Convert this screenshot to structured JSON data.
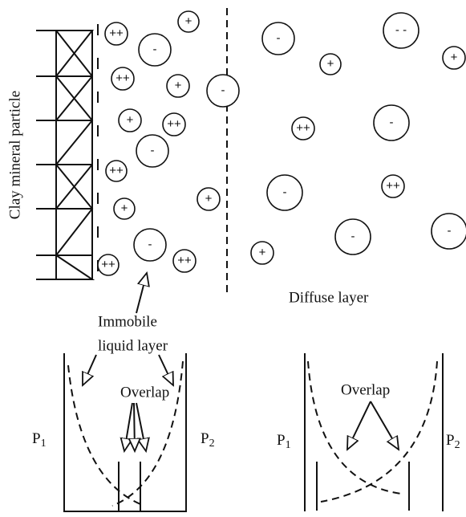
{
  "particle_label": "Clay mineral particle",
  "ions": [
    "++",
    "+",
    "-",
    "++",
    "+",
    "+",
    "++",
    "-",
    "++",
    "+",
    "+",
    "-",
    "++",
    "++",
    "-",
    "-",
    "- -",
    "+",
    "+",
    "++",
    "-",
    "-",
    "++",
    "+",
    "-",
    "-"
  ],
  "immobile_label": [
    "Immobile",
    "liquid layer"
  ],
  "diffuse_label": "Diffuse layer",
  "panels": [
    {
      "overlap": "Overlap",
      "left": {
        "base": "P",
        "sub": "1"
      },
      "right": {
        "base": "P",
        "sub": "2"
      }
    },
    {
      "overlap": "Overlap",
      "left": {
        "base": "P",
        "sub": "1"
      },
      "right": {
        "base": "P",
        "sub": "2"
      }
    }
  ]
}
